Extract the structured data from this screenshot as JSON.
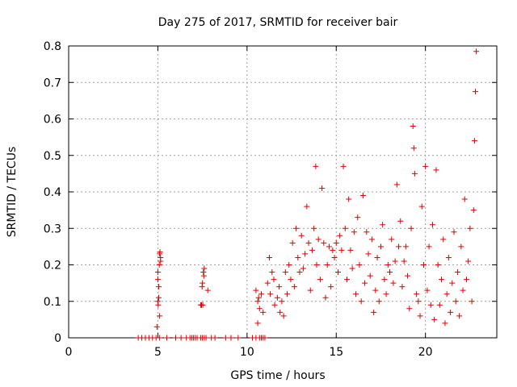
{
  "chart_data": {
    "type": "scatter",
    "title": "Day 275 of 2017, SRMTID for receiver bair",
    "xlabel": "GPS time / hours",
    "ylabel": "SRMTID / TECUs",
    "xlim": [
      0,
      24
    ],
    "ylim": [
      0,
      0.8
    ],
    "x_ticks": [
      0,
      5,
      10,
      15,
      20
    ],
    "x_tick_labels": [
      "0",
      "5",
      "10",
      "15",
      "20"
    ],
    "y_ticks": [
      0,
      0.1,
      0.2,
      0.3,
      0.4,
      0.5,
      0.6,
      0.7,
      0.8
    ],
    "y_tick_labels": [
      "0",
      "0.1",
      "0.2",
      "0.3",
      "0.4",
      "0.5",
      "0.6",
      "0.7",
      "0.8"
    ],
    "grid": true,
    "marker": "+",
    "color": "#e00000",
    "series": [
      {
        "name": "SRMTID",
        "points": [
          [
            3.9,
            0
          ],
          [
            4.1,
            0
          ],
          [
            4.3,
            0
          ],
          [
            4.5,
            0
          ],
          [
            4.7,
            0
          ],
          [
            4.9,
            0
          ],
          [
            5.1,
            0
          ],
          [
            5.5,
            0
          ],
          [
            6.0,
            0
          ],
          [
            6.3,
            0
          ],
          [
            6.6,
            0
          ],
          [
            6.8,
            0
          ],
          [
            6.9,
            0
          ],
          [
            7.0,
            0
          ],
          [
            7.1,
            0
          ],
          [
            7.2,
            0
          ],
          [
            7.4,
            0
          ],
          [
            7.5,
            0
          ],
          [
            7.6,
            0
          ],
          [
            7.7,
            0
          ],
          [
            8.0,
            0
          ],
          [
            8.2,
            0
          ],
          [
            8.8,
            0
          ],
          [
            9.1,
            0
          ],
          [
            9.5,
            0
          ],
          [
            10.3,
            0
          ],
          [
            10.5,
            0
          ],
          [
            10.7,
            0
          ],
          [
            10.8,
            0
          ],
          [
            10.9,
            0
          ],
          [
            11.0,
            0
          ],
          [
            4.95,
            0.03
          ],
          [
            5.0,
            0.1
          ],
          [
            5.02,
            0.09
          ],
          [
            5.05,
            0.14
          ],
          [
            5.08,
            0.2
          ],
          [
            5.1,
            0.23
          ],
          [
            5.12,
            0.235
          ],
          [
            5.15,
            0.22
          ],
          [
            5.0,
            0.16
          ],
          [
            5.05,
            0.11
          ],
          [
            5.1,
            0.06
          ],
          [
            5.15,
            0.21
          ],
          [
            5.0,
            0.18
          ],
          [
            7.4,
            0.09
          ],
          [
            7.45,
            0.09
          ],
          [
            7.5,
            0.15
          ],
          [
            7.55,
            0.18
          ],
          [
            7.6,
            0.19
          ],
          [
            7.48,
            0.14
          ],
          [
            7.52,
            0.09
          ],
          [
            7.58,
            0.17
          ],
          [
            7.8,
            0.13
          ],
          [
            10.5,
            0.13
          ],
          [
            10.6,
            0.1
          ],
          [
            10.6,
            0.04
          ],
          [
            10.7,
            0.08
          ],
          [
            10.8,
            0.12
          ],
          [
            10.9,
            0.07
          ],
          [
            10.65,
            0.11
          ],
          [
            11.15,
            0.15
          ],
          [
            11.25,
            0.22
          ],
          [
            11.3,
            0.12
          ],
          [
            11.4,
            0.18
          ],
          [
            11.5,
            0.16
          ],
          [
            11.55,
            0.09
          ],
          [
            11.7,
            0.11
          ],
          [
            11.8,
            0.14
          ],
          [
            11.85,
            0.07
          ],
          [
            11.95,
            0.1
          ],
          [
            12.05,
            0.06
          ],
          [
            12.15,
            0.18
          ],
          [
            12.25,
            0.12
          ],
          [
            12.35,
            0.2
          ],
          [
            12.45,
            0.16
          ],
          [
            12.55,
            0.26
          ],
          [
            12.65,
            0.14
          ],
          [
            12.75,
            0.3
          ],
          [
            12.85,
            0.22
          ],
          [
            12.95,
            0.18
          ],
          [
            13.05,
            0.28
          ],
          [
            13.15,
            0.19
          ],
          [
            13.25,
            0.23
          ],
          [
            13.35,
            0.36
          ],
          [
            13.45,
            0.26
          ],
          [
            13.55,
            0.13
          ],
          [
            13.65,
            0.24
          ],
          [
            13.75,
            0.3
          ],
          [
            13.85,
            0.47
          ],
          [
            13.9,
            0.2
          ],
          [
            14.0,
            0.27
          ],
          [
            14.1,
            0.16
          ],
          [
            14.2,
            0.41
          ],
          [
            14.3,
            0.26
          ],
          [
            14.4,
            0.11
          ],
          [
            14.5,
            0.2
          ],
          [
            14.6,
            0.25
          ],
          [
            14.7,
            0.14
          ],
          [
            14.8,
            0.24
          ],
          [
            14.9,
            0.22
          ],
          [
            15.0,
            0.26
          ],
          [
            15.1,
            0.18
          ],
          [
            15.2,
            0.28
          ],
          [
            15.3,
            0.24
          ],
          [
            15.4,
            0.47
          ],
          [
            15.5,
            0.3
          ],
          [
            15.6,
            0.16
          ],
          [
            15.7,
            0.38
          ],
          [
            15.8,
            0.24
          ],
          [
            15.9,
            0.19
          ],
          [
            16.0,
            0.29
          ],
          [
            16.1,
            0.12
          ],
          [
            16.2,
            0.33
          ],
          [
            16.3,
            0.2
          ],
          [
            16.4,
            0.1
          ],
          [
            16.5,
            0.39
          ],
          [
            16.6,
            0.15
          ],
          [
            16.7,
            0.29
          ],
          [
            16.8,
            0.23
          ],
          [
            16.9,
            0.17
          ],
          [
            17.0,
            0.27
          ],
          [
            17.1,
            0.07
          ],
          [
            17.2,
            0.13
          ],
          [
            17.3,
            0.22
          ],
          [
            17.4,
            0.1
          ],
          [
            17.5,
            0.25
          ],
          [
            17.6,
            0.31
          ],
          [
            17.7,
            0.16
          ],
          [
            17.8,
            0.12
          ],
          [
            17.9,
            0.2
          ],
          [
            18.0,
            0.18
          ],
          [
            18.1,
            0.27
          ],
          [
            18.2,
            0.15
          ],
          [
            18.3,
            0.21
          ],
          [
            18.4,
            0.42
          ],
          [
            18.5,
            0.25
          ],
          [
            18.6,
            0.32
          ],
          [
            18.7,
            0.14
          ],
          [
            18.8,
            0.21
          ],
          [
            18.9,
            0.25
          ],
          [
            19.0,
            0.17
          ],
          [
            19.1,
            0.08
          ],
          [
            19.2,
            0.3
          ],
          [
            19.3,
            0.58
          ],
          [
            19.35,
            0.52
          ],
          [
            19.4,
            0.45
          ],
          [
            19.5,
            0.12
          ],
          [
            19.6,
            0.1
          ],
          [
            19.7,
            0.06
          ],
          [
            19.8,
            0.36
          ],
          [
            19.9,
            0.2
          ],
          [
            20.0,
            0.47
          ],
          [
            20.1,
            0.13
          ],
          [
            20.2,
            0.25
          ],
          [
            20.3,
            0.09
          ],
          [
            20.4,
            0.31
          ],
          [
            20.5,
            0.05
          ],
          [
            20.6,
            0.46
          ],
          [
            20.7,
            0.2
          ],
          [
            20.8,
            0.09
          ],
          [
            20.9,
            0.16
          ],
          [
            21.0,
            0.27
          ],
          [
            21.1,
            0.04
          ],
          [
            21.2,
            0.12
          ],
          [
            21.3,
            0.22
          ],
          [
            21.4,
            0.07
          ],
          [
            21.5,
            0.15
          ],
          [
            21.6,
            0.29
          ],
          [
            21.7,
            0.1
          ],
          [
            21.8,
            0.18
          ],
          [
            21.9,
            0.06
          ],
          [
            22.0,
            0.25
          ],
          [
            22.1,
            0.13
          ],
          [
            22.2,
            0.38
          ],
          [
            22.3,
            0.16
          ],
          [
            22.4,
            0.21
          ],
          [
            22.5,
            0.3
          ],
          [
            22.6,
            0.1
          ],
          [
            22.7,
            0.35
          ],
          [
            22.75,
            0.54
          ],
          [
            22.8,
            0.675
          ],
          [
            22.85,
            0.785
          ]
        ]
      }
    ]
  }
}
